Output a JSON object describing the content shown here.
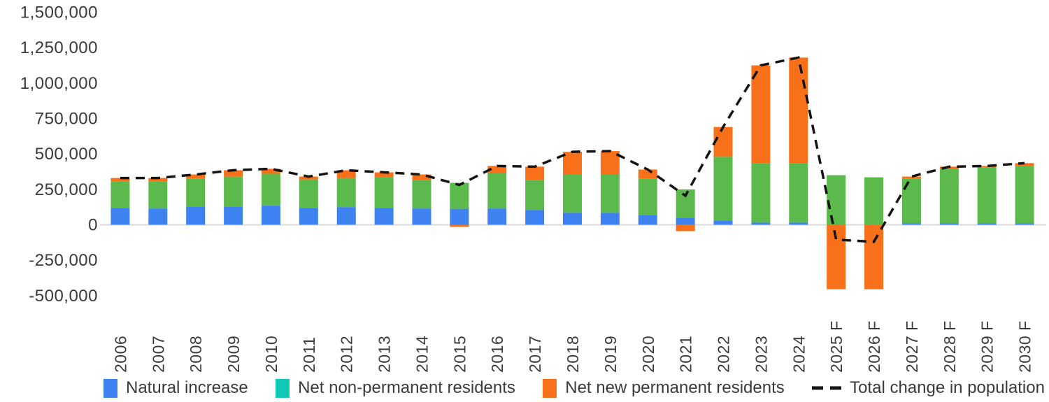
{
  "chart_data": {
    "type": "bar",
    "subtype": "stacked-bar-with-dashed-line",
    "title": "",
    "xlabel": "",
    "ylabel": "",
    "grid": "none",
    "legend_position": "bottom",
    "categories": [
      "2006",
      "2007",
      "2008",
      "2009",
      "2010",
      "2011",
      "2012",
      "2013",
      "2014",
      "2015",
      "2016",
      "2017",
      "2018",
      "2019",
      "2020",
      "2021",
      "2022",
      "2023",
      "2024",
      "2025 F",
      "2026 F",
      "2027 F",
      "2028 F",
      "2029 F",
      "2030 F"
    ],
    "series": [
      {
        "name": "Natural increase",
        "legend_color": "#3E82F1",
        "bar_color": "#3E82F1",
        "values": [
          120000,
          115000,
          130000,
          130000,
          135000,
          120000,
          125000,
          120000,
          115000,
          113000,
          115000,
          105000,
          85000,
          85000,
          70000,
          50000,
          30000,
          15000,
          15000,
          0,
          0,
          10000,
          10000,
          10000,
          10000
        ]
      },
      {
        "name": "Net non-permanent residents",
        "legend_color": "#0FC9B6",
        "bar_color": "#5CB94C",
        "values": [
          185000,
          190000,
          195000,
          210000,
          225000,
          200000,
          205000,
          215000,
          200000,
          183000,
          250000,
          210000,
          270000,
          270000,
          255000,
          200000,
          450000,
          420000,
          420000,
          350000,
          335000,
          315000,
          385000,
          395000,
          405000
        ]
      },
      {
        "name": "Net new permanent residents",
        "legend_color": "#F8711A",
        "bar_color": "#F8711A",
        "values": [
          25000,
          25000,
          30000,
          45000,
          35000,
          20000,
          55000,
          35000,
          40000,
          -15000,
          50000,
          95000,
          160000,
          165000,
          65000,
          -45000,
          210000,
          690000,
          745000,
          -455000,
          -455000,
          15000,
          15000,
          10000,
          20000
        ]
      }
    ],
    "line_series": {
      "name": "Total change in population",
      "style": "dashed",
      "color": "#141414",
      "values": [
        330000,
        330000,
        355000,
        385000,
        395000,
        340000,
        385000,
        370000,
        355000,
        281000,
        415000,
        410000,
        515000,
        520000,
        390000,
        205000,
        690000,
        1125000,
        1180000,
        -105000,
        -120000,
        340000,
        410000,
        415000,
        435000
      ]
    },
    "y_axis": {
      "min": -500000,
      "max": 1500000,
      "tick_values": [
        1500000,
        1250000,
        1000000,
        750000,
        500000,
        250000,
        0,
        -250000,
        -500000
      ],
      "tick_labels": [
        "1,500,000",
        "1,250,000",
        "1,000,000",
        "750,000",
        "500,000",
        "250,000",
        "0",
        "-250,000",
        "-500,000"
      ]
    },
    "zero_line_color": "#D9D9D9"
  },
  "legend": {
    "items": [
      {
        "label": "Natural increase",
        "swatch": "square",
        "color": "#3E82F1"
      },
      {
        "label": "Net non-permanent residents",
        "swatch": "square",
        "color": "#0FC9B6"
      },
      {
        "label": "Net new permanent residents",
        "swatch": "square",
        "color": "#F8711A"
      },
      {
        "label": "Total change in population",
        "swatch": "dashed-line",
        "color": "#141414"
      }
    ]
  }
}
